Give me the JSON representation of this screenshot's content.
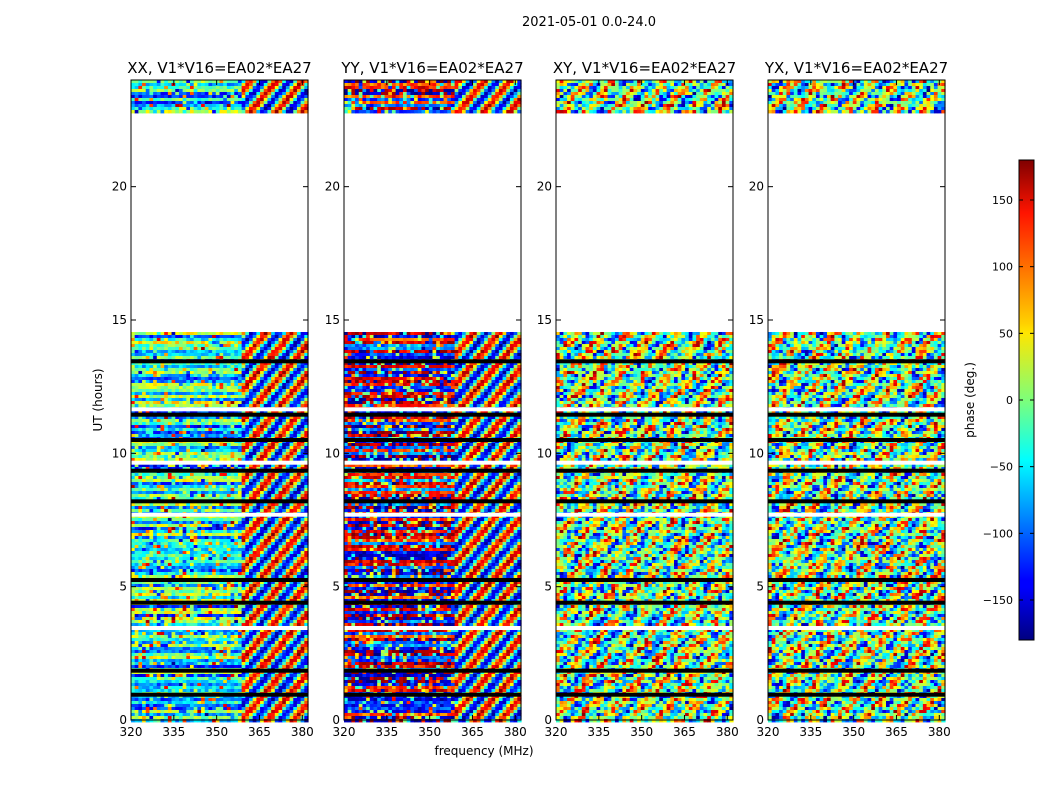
{
  "page": {
    "suptitle": "2021-05-01 0.0-24.0",
    "xlabel": "frequency (MHz)",
    "ylabel": "UT (hours)",
    "colorbar_label": "phase (deg.)"
  },
  "chart_data": {
    "type": "heatmap",
    "colormap": "jet",
    "nan_color": "#ffffff",
    "xlim": [
      320,
      382
    ],
    "ylim": [
      0,
      24
    ],
    "xticks": [
      320,
      335,
      350,
      365,
      380
    ],
    "yticks": [
      0,
      5,
      10,
      15,
      20
    ],
    "colorbar": {
      "min": -180,
      "max": 180,
      "ticks": [
        150,
        100,
        50,
        0,
        -50,
        -100,
        -150
      ]
    },
    "missing_data_ranges_hours": [
      [
        14.5,
        22.8
      ]
    ],
    "flagged_rows_hours": [
      0.95,
      1.85,
      3.45,
      4.4,
      5.25,
      7.7,
      8.2,
      9.35,
      9.65,
      10.5,
      11.45,
      11.65,
      13.45
    ],
    "panels": [
      {
        "title": "XX, V1*V16=EA02*EA27",
        "mean_phase_low_freq": -40,
        "coherent_below_MHz": 360
      },
      {
        "title": "YY, V1*V16=EA02*EA27",
        "mean_phase_low_freq": -170,
        "coherent_below_MHz": 360
      },
      {
        "title": "XY, V1*V16=EA02*EA27",
        "mean_phase_low_freq": 0,
        "coherent_below_MHz": 0
      },
      {
        "title": "YX, V1*V16=EA02*EA27",
        "mean_phase_low_freq": 0,
        "coherent_below_MHz": 0
      }
    ]
  }
}
